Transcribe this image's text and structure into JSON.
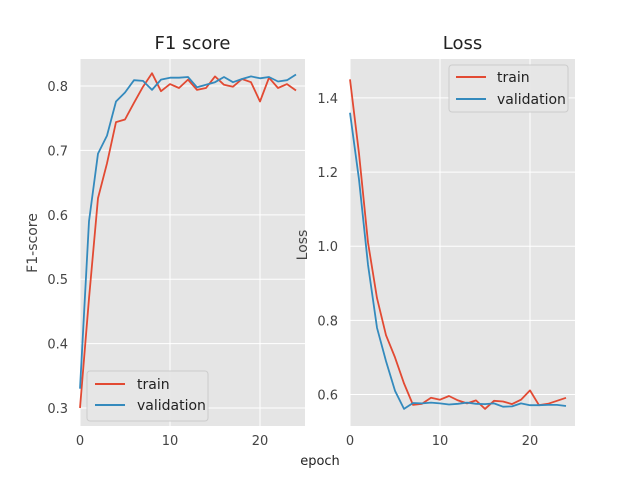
{
  "chart_data": [
    {
      "type": "line",
      "title": "F1 score",
      "xlabel": "",
      "ylabel": "F1-score",
      "xlim": [
        0,
        25
      ],
      "ylim": [
        0.272,
        0.842
      ],
      "xticks": [
        0,
        10,
        20
      ],
      "yticks": [
        0.3,
        0.4,
        0.5,
        0.6,
        0.7,
        0.8
      ],
      "ytick_labels": [
        "0.3",
        "0.4",
        "0.5",
        "0.6",
        "0.7",
        "0.8"
      ],
      "xtick_labels": [
        "0",
        "10",
        "20"
      ],
      "grid": true,
      "legend_position": "lower-left",
      "x": [
        0,
        1,
        2,
        3,
        4,
        5,
        6,
        7,
        8,
        9,
        10,
        11,
        12,
        13,
        14,
        15,
        16,
        17,
        18,
        19,
        20,
        21,
        22,
        23,
        24
      ],
      "series": [
        {
          "name": "train",
          "color": "#e24a33",
          "values": [
            0.3,
            0.47,
            0.626,
            0.68,
            0.744,
            0.748,
            0.774,
            0.799,
            0.82,
            0.792,
            0.803,
            0.797,
            0.81,
            0.794,
            0.797,
            0.815,
            0.802,
            0.799,
            0.811,
            0.806,
            0.776,
            0.813,
            0.797,
            0.803,
            0.793
          ]
        },
        {
          "name": "validation",
          "color": "#348abd",
          "values": [
            0.33,
            0.59,
            0.695,
            0.723,
            0.776,
            0.79,
            0.809,
            0.808,
            0.794,
            0.81,
            0.813,
            0.813,
            0.814,
            0.798,
            0.802,
            0.806,
            0.814,
            0.806,
            0.811,
            0.815,
            0.812,
            0.814,
            0.807,
            0.809,
            0.818
          ]
        }
      ]
    },
    {
      "type": "line",
      "title": "Loss",
      "xlabel": "",
      "ylabel": "Loss",
      "xlim": [
        0,
        25
      ],
      "ylim": [
        0.515,
        1.505
      ],
      "xticks": [
        0,
        10,
        20
      ],
      "yticks": [
        0.6,
        0.8,
        1.0,
        1.2,
        1.4
      ],
      "ytick_labels": [
        "0.6",
        "0.8",
        "1.0",
        "1.2",
        "1.4"
      ],
      "xtick_labels": [
        "0",
        "10",
        "20"
      ],
      "grid": true,
      "legend_position": "top-right",
      "x": [
        0,
        1,
        2,
        3,
        4,
        5,
        6,
        7,
        8,
        9,
        10,
        11,
        12,
        13,
        14,
        15,
        16,
        17,
        18,
        19,
        20,
        21,
        22,
        23,
        24
      ],
      "series": [
        {
          "name": "train",
          "color": "#e24a33",
          "values": [
            1.45,
            1.25,
            1.01,
            0.86,
            0.76,
            0.7,
            0.63,
            0.572,
            0.575,
            0.591,
            0.586,
            0.596,
            0.584,
            0.576,
            0.584,
            0.561,
            0.583,
            0.581,
            0.574,
            0.586,
            0.611,
            0.571,
            0.575,
            0.583,
            0.591
          ]
        },
        {
          "name": "validation",
          "color": "#348abd",
          "values": [
            1.36,
            1.18,
            0.95,
            0.78,
            0.69,
            0.61,
            0.561,
            0.577,
            0.576,
            0.578,
            0.576,
            0.573,
            0.575,
            0.578,
            0.575,
            0.574,
            0.576,
            0.567,
            0.568,
            0.576,
            0.571,
            0.571,
            0.572,
            0.572,
            0.569
          ]
        }
      ]
    }
  ],
  "figure": {
    "xlabel": "epoch",
    "background": "#ffffff",
    "plot_background": "#e5e5e5",
    "grid_color": "#ffffff"
  }
}
